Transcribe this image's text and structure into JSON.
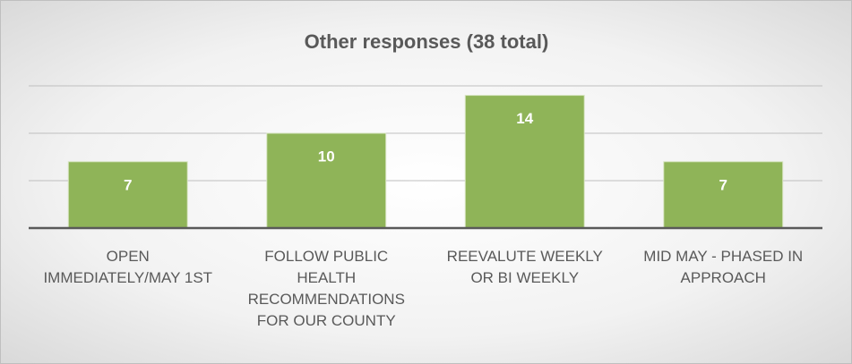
{
  "chart_data": {
    "type": "bar",
    "title": "Other responses (38 total)",
    "categories": [
      "OPEN IMMEDIATELY/MAY 1ST",
      "FOLLOW PUBLIC HEALTH RECOMMENDATIONS FOR OUR COUNTY",
      "REEVALUTE WEEKLY OR BI WEEKLY",
      "MID MAY - PHASED IN APPROACH"
    ],
    "values": [
      7,
      10,
      14,
      7
    ],
    "color": "#8fb458",
    "ylim": [
      0,
      15
    ],
    "yticks": [
      0,
      5,
      10,
      15
    ],
    "grid": true
  }
}
